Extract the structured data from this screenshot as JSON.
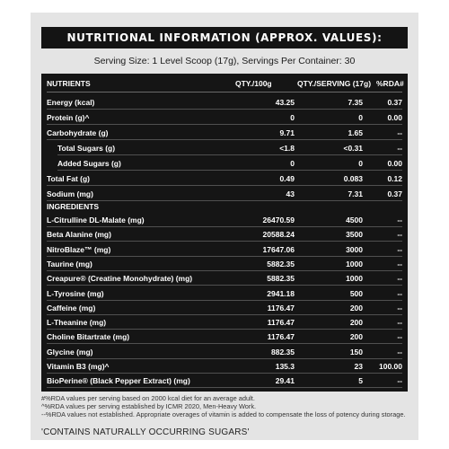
{
  "title": "NUTRITIONAL INFORMATION (APPROX. VALUES):",
  "serving_line": "Serving Size: 1 Level Scoop (17g), Servings Per Container: 30",
  "headers": {
    "nutrients": "NUTRIENTS",
    "per100": "QTY./100g",
    "perserving": "QTY./SERVING (17g)",
    "rda": "%RDA#"
  },
  "nutrients": [
    {
      "label": "Energy (kcal)",
      "per100": "43.25",
      "serving": "7.35",
      "rda": "0.37",
      "indent": false
    },
    {
      "label": "Protein (g)^",
      "per100": "0",
      "serving": "0",
      "rda": "0.00",
      "indent": false
    },
    {
      "label": "Carbohydrate (g)",
      "per100": "9.71",
      "serving": "1.65",
      "rda": "--",
      "indent": false
    },
    {
      "label": "Total Sugars (g)",
      "per100": "<1.8",
      "serving": "<0.31",
      "rda": "--",
      "indent": true
    },
    {
      "label": "Added Sugars (g)",
      "per100": "0",
      "serving": "0",
      "rda": "0.00",
      "indent": true
    },
    {
      "label": "Total Fat (g)",
      "per100": "0.49",
      "serving": "0.083",
      "rda": "0.12",
      "indent": false
    },
    {
      "label": "Sodium (mg)",
      "per100": "43",
      "serving": "7.31",
      "rda": "0.37",
      "indent": false
    }
  ],
  "ingredients_heading": "INGREDIENTS",
  "ingredients": [
    {
      "label": "L-Citrulline DL-Malate (mg)",
      "per100": "26470.59",
      "serving": "4500",
      "rda": "--"
    },
    {
      "label": "Beta Alanine (mg)",
      "per100": "20588.24",
      "serving": "3500",
      "rda": "--"
    },
    {
      "label": "NitroBlaze™ (mg)",
      "per100": "17647.06",
      "serving": "3000",
      "rda": "--"
    },
    {
      "label": "Taurine (mg)",
      "per100": "5882.35",
      "serving": "1000",
      "rda": "--"
    },
    {
      "label": "Creapure® (Creatine Monohydrate) (mg)",
      "per100": "5882.35",
      "serving": "1000",
      "rda": "--"
    },
    {
      "label": "L-Tyrosine (mg)",
      "per100": "2941.18",
      "serving": "500",
      "rda": "--"
    },
    {
      "label": "Caffeine (mg)",
      "per100": "1176.47",
      "serving": "200",
      "rda": "--"
    },
    {
      "label": "L-Theanine (mg)",
      "per100": "1176.47",
      "serving": "200",
      "rda": "--"
    },
    {
      "label": "Choline Bitartrate (mg)",
      "per100": "1176.47",
      "serving": "200",
      "rda": "--"
    },
    {
      "label": "Glycine (mg)",
      "per100": "882.35",
      "serving": "150",
      "rda": "--"
    },
    {
      "label": "Vitamin B3 (mg)^",
      "per100": "135.3",
      "serving": "23",
      "rda": "100.00"
    },
    {
      "label": "BioPerine® (Black Pepper Extract) (mg)",
      "per100": "29.41",
      "serving": "5",
      "rda": "--"
    }
  ],
  "footnotes": [
    "#%RDA values per serving based on 2000 kcal diet for an average adult.",
    "^%RDA values per serving established by ICMR 2020, Men-Heavy Work.",
    "--%RDA values not established. Appropriate overages of vitamin is added to compensate the loss of potency during storage."
  ],
  "contains_note": "'CONTAINS NATURALLY OCCURRING SUGARS'"
}
